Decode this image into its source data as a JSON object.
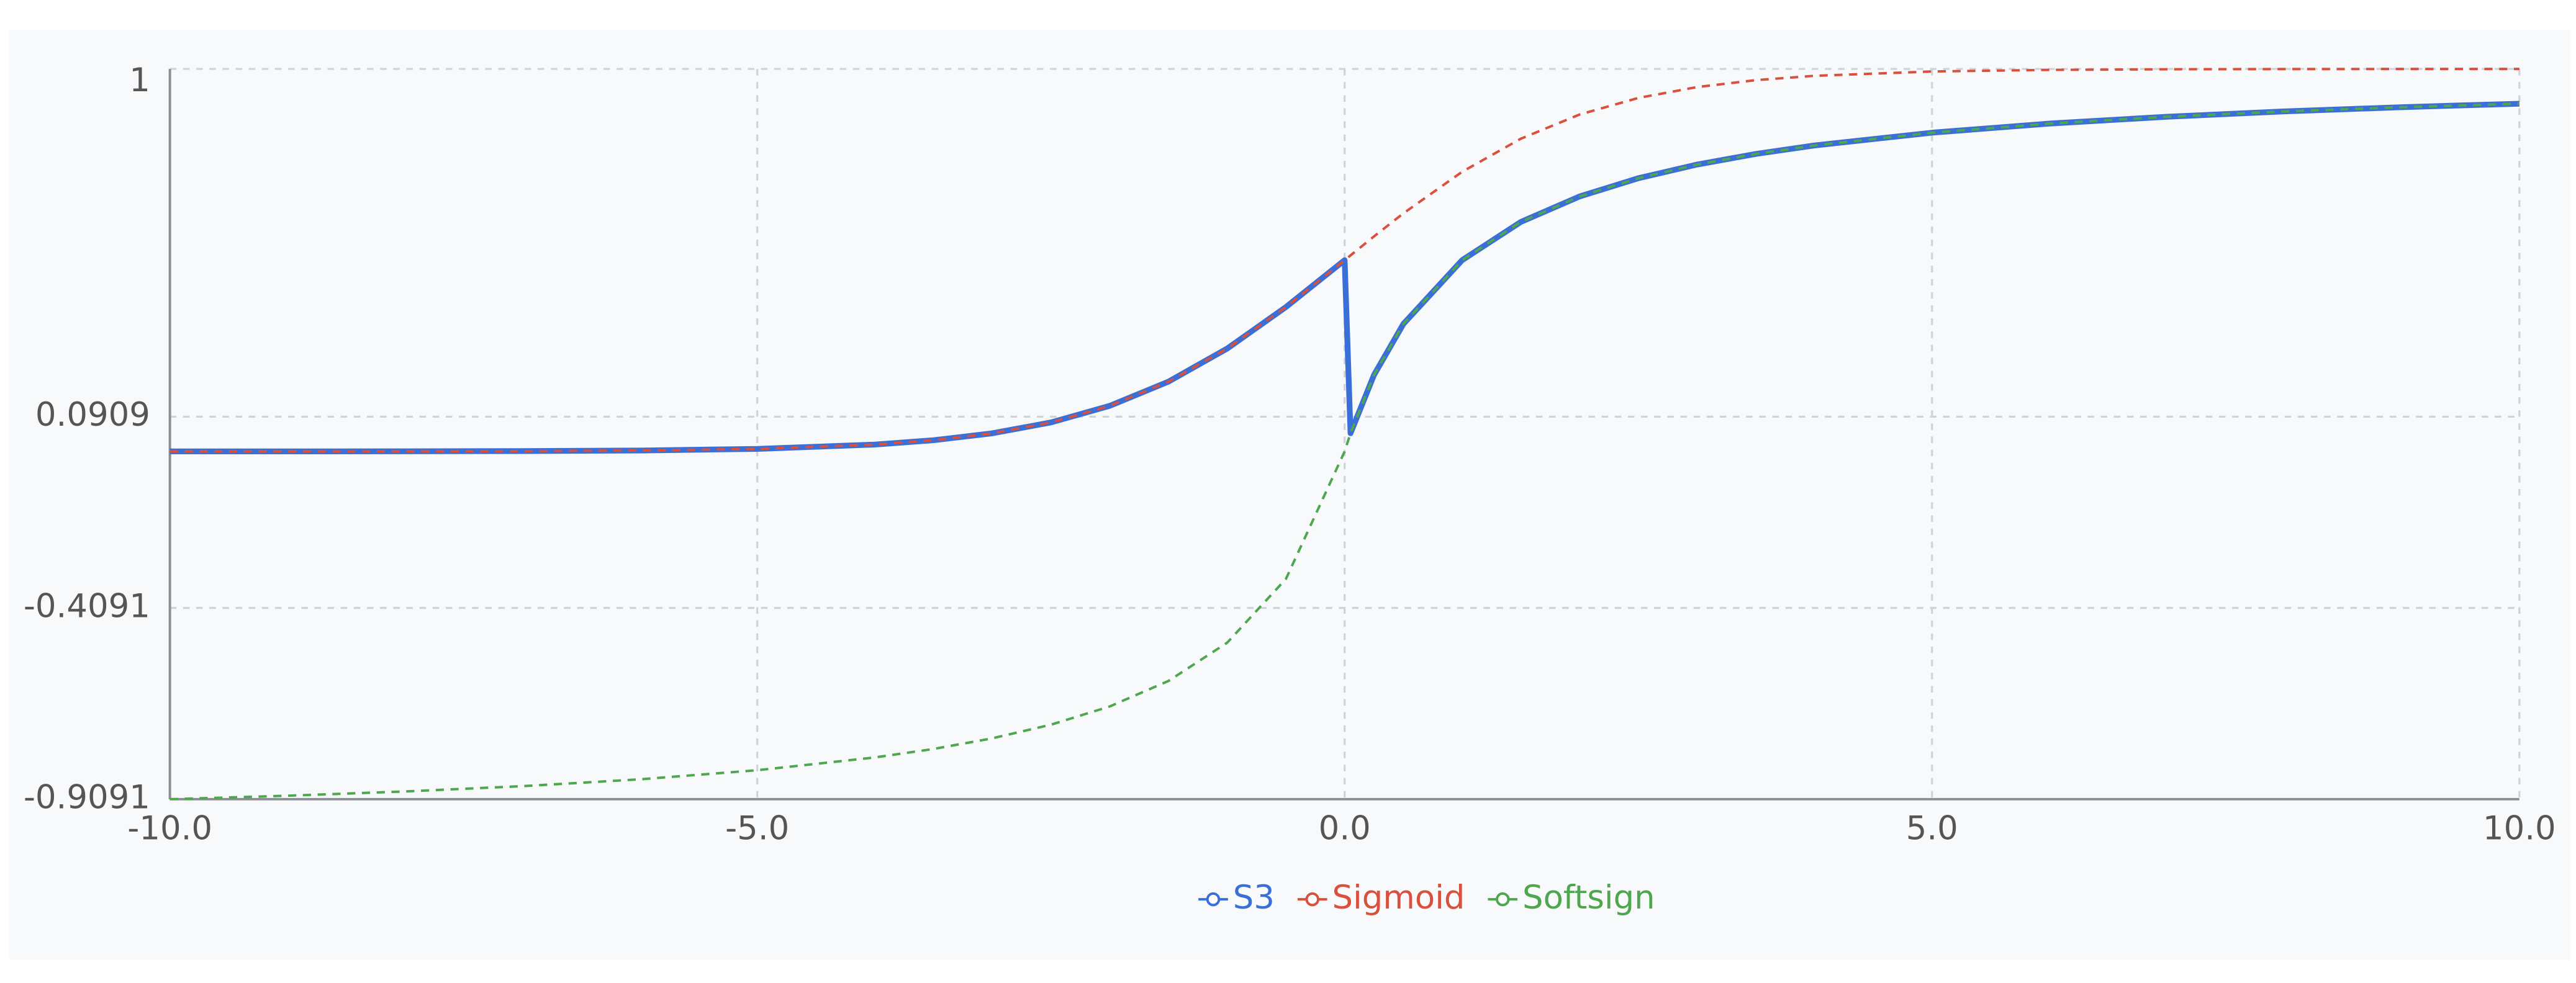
{
  "chart_data": {
    "type": "line",
    "x": [
      -10,
      -9,
      -8,
      -7,
      -6,
      -5,
      -4,
      -3.5,
      -3,
      -2.5,
      -2,
      -1.5,
      -1,
      -0.5,
      0,
      0.05,
      0.25,
      0.5,
      1,
      1.5,
      2,
      2.5,
      3,
      3.5,
      4,
      5,
      6,
      7,
      8,
      9,
      10
    ],
    "series": [
      {
        "name": "S3",
        "color": "#3a6fd8",
        "style": "solid",
        "values": [
          5e-05,
          0.00012,
          0.00034,
          0.00091,
          0.00247,
          0.00669,
          0.01799,
          0.02931,
          0.04743,
          0.07586,
          0.1192,
          0.18243,
          0.26894,
          0.37754,
          0.5,
          0.04762,
          0.2,
          0.33333,
          0.5,
          0.6,
          0.66667,
          0.71429,
          0.75,
          0.77778,
          0.8,
          0.83333,
          0.85714,
          0.875,
          0.88889,
          0.9,
          0.90909
        ]
      },
      {
        "name": "Sigmoid",
        "color": "#d9503f",
        "style": "dashed",
        "values": [
          5e-05,
          0.00012,
          0.00034,
          0.00091,
          0.00247,
          0.00669,
          0.01799,
          0.02931,
          0.04743,
          0.07586,
          0.1192,
          0.18243,
          0.26894,
          0.37754,
          0.5,
          0.5125,
          0.56218,
          0.62246,
          0.73106,
          0.81757,
          0.8808,
          0.92414,
          0.95257,
          0.97069,
          0.98201,
          0.99331,
          0.99753,
          0.99909,
          0.99966,
          0.99988,
          0.99995
        ]
      },
      {
        "name": "Softsign",
        "color": "#4ea64f",
        "style": "dashed",
        "values": [
          -0.90909,
          -0.9,
          -0.88889,
          -0.875,
          -0.85714,
          -0.83333,
          -0.8,
          -0.77778,
          -0.75,
          -0.71429,
          -0.66667,
          -0.6,
          -0.5,
          -0.33333,
          0,
          0.04762,
          0.2,
          0.33333,
          0.5,
          0.6,
          0.66667,
          0.71429,
          0.75,
          0.77778,
          0.8,
          0.83333,
          0.85714,
          0.875,
          0.88889,
          0.9,
          0.90909
        ]
      }
    ],
    "xlim": [
      -10,
      10
    ],
    "xticks": [
      {
        "value": -10,
        "label": "-10.0"
      },
      {
        "value": -5,
        "label": "-5.0"
      },
      {
        "value": 0,
        "label": "0.0"
      },
      {
        "value": 5,
        "label": "5.0"
      },
      {
        "value": 10,
        "label": "10.0"
      }
    ],
    "ylim": [
      -0.9091,
      1
    ],
    "yticks": [
      -0.9091,
      -0.4091,
      0.0909,
      1
    ],
    "grid": true,
    "legend": "bottom"
  }
}
